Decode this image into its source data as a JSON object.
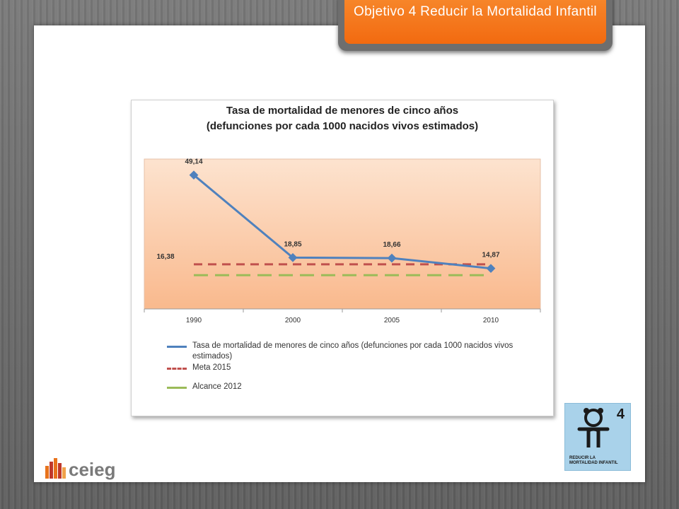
{
  "banner": {
    "title": "Objetivo 4 Reducir la Mortalidad Infantil"
  },
  "chart_data": {
    "type": "line",
    "title_line1": "Tasa de mortalidad de menores de cinco años",
    "title_line2": "(defunciones por cada 1000 nacidos vivos estimados)",
    "categories": [
      "1990",
      "2000",
      "2005",
      "2010"
    ],
    "series": [
      {
        "name": "Tasa de mortalidad de menores de cinco años (defunciones por cada 1000 nacidos vivos estimados)",
        "values": [
          49.14,
          18.85,
          18.66,
          14.87
        ],
        "labels": [
          "49,14",
          "18,85",
          "18,66",
          "14,87"
        ],
        "color": "#4f81bd",
        "style": "solid"
      },
      {
        "name": "Meta 2015",
        "values": [
          16.38,
          16.38,
          16.38,
          16.38
        ],
        "color": "#c0504d",
        "style": "dashed"
      },
      {
        "name": "Alcance 2012",
        "values": [
          12.4,
          12.4,
          12.4,
          12.4
        ],
        "color": "#9bbb59",
        "style": "dashed"
      }
    ],
    "side_label": "16,38",
    "ylim": [
      0,
      55
    ],
    "grid": false,
    "legend": "bottom"
  },
  "logo": {
    "text": "ceieg",
    "colors": [
      "#e8731c",
      "#c0392b",
      "#7a7a7a"
    ]
  },
  "mdg_icon": {
    "number": "4",
    "caption_line1": "REDUCIR LA",
    "caption_line2": "MORTALIDAD INFANTIL",
    "color": "#a9d2ea"
  }
}
